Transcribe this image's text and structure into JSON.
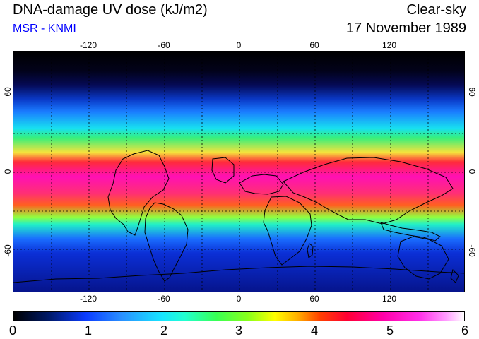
{
  "header": {
    "title": "DNA-damage UV dose (kJ/m2)",
    "source": "MSR - KNMI",
    "condition": "Clear-sky",
    "date": "17 November 1989"
  },
  "map": {
    "lon_ticks": [
      "-120",
      "-60",
      "0",
      "60",
      "120"
    ],
    "lat_ticks": [
      "60",
      "0",
      "-60"
    ]
  },
  "colorbar": {
    "labels": [
      "0",
      "1",
      "2",
      "3",
      "4",
      "5",
      "6"
    ],
    "colors": [
      "#000000",
      "#0000ff",
      "#00ffff",
      "#00ff00",
      "#ffff00",
      "#ff0000",
      "#ff00ff",
      "#ffffff"
    ]
  }
}
